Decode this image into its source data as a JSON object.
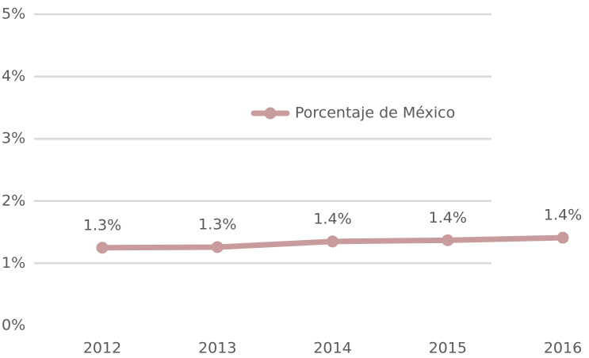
{
  "chart_data": {
    "type": "line",
    "categories": [
      "2012",
      "2013",
      "2014",
      "2015",
      "2016"
    ],
    "series": [
      {
        "name": "Porcentaje de México",
        "color": "#c89c9c",
        "values": [
          1.25,
          1.26,
          1.35,
          1.37,
          1.41
        ],
        "value_labels": [
          "1.3%",
          "1.3%",
          "1.4%",
          "1.4%",
          "1.4%"
        ]
      }
    ],
    "ylim": [
      0,
      5
    ],
    "yticks": [
      {
        "value": 0,
        "label": "0%"
      },
      {
        "value": 1,
        "label": "1%"
      },
      {
        "value": 2,
        "label": "2%"
      },
      {
        "value": 3,
        "label": "3%"
      },
      {
        "value": 4,
        "label": "4%"
      },
      {
        "value": 5,
        "label": "5%"
      }
    ],
    "grid": true,
    "legend": "top"
  }
}
